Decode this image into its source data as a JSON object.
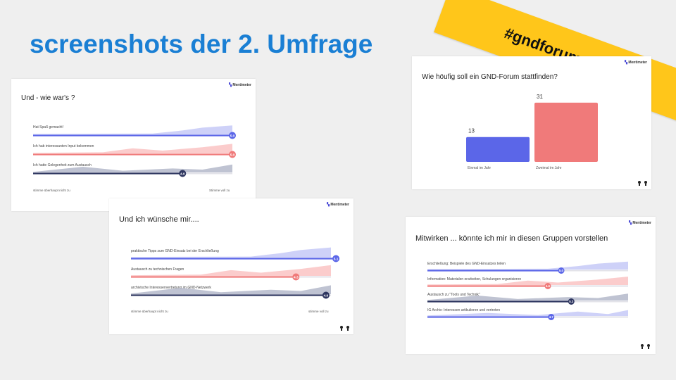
{
  "slide": {
    "title": "screenshots der 2. Umfrage",
    "hashtag": "#gndforumarchiv"
  },
  "cards": {
    "logo_text": "Mentimeter"
  },
  "colors": {
    "blue": "#5b66e8",
    "blue_fill": "#c9ccf7",
    "salmon": "#f07a7a",
    "salmon_fill": "#fbc7c7",
    "navy": "#2e3660",
    "navy_fill": "#b8bccd",
    "title_blue": "#1a7fd4",
    "banner": "#ffc61a"
  },
  "chart_data": [
    {
      "id": "wie_wars",
      "type": "scale",
      "title": "Und - wie war's ?",
      "min_label": "stimme überhaupt nicht zu",
      "max_label": "Stimme voll zu",
      "scale_range": [
        1,
        5
      ],
      "series": [
        {
          "label": "Hat Spaß gemacht!",
          "value": 5.0
        },
        {
          "label": "Ich hab interessanten Input bekommen",
          "value": 5.0
        },
        {
          "label": "Ich hatte Gelegenheit zum Austausch",
          "value": 4.0
        }
      ]
    },
    {
      "id": "wuensche",
      "type": "scale",
      "title": "Und ich wünsche mir....",
      "min_label": "stimme überhaupt nicht zu",
      "max_label": "stimme voll zu",
      "scale_range": [
        1,
        5
      ],
      "series": [
        {
          "label": "praktische Tipps zum GND-Einsatz bei der Erschließung",
          "value": 5.1
        },
        {
          "label": "Austausch zu technischen Fragen",
          "value": 4.3
        },
        {
          "label": "archivische Interessenvertretung im GND-Netzwerk",
          "value": 4.9
        }
      ]
    },
    {
      "id": "haeufigkeit",
      "type": "bar",
      "title": "Wie höufig soll ein GND-Forum stattfinden?",
      "categories": [
        "Einmal im Jahr",
        "Zweimal im Jahr"
      ],
      "values": [
        13,
        31
      ],
      "ylim": [
        0,
        35
      ]
    },
    {
      "id": "mitwirken",
      "type": "scale",
      "title": "Mitwirken ... könnte ich mir in diesen Gruppen vorstellen",
      "scale_range": [
        1,
        7
      ],
      "series": [
        {
          "label": "Erschließung: Beispiele des GND-Einsatzes teilen",
          "value": 5.0
        },
        {
          "label": "Information: Materialen erarbeiten, Schulungen organisieren",
          "value": 4.6
        },
        {
          "label": "Austausch zu \"Tools und Technik\"",
          "value": 5.3
        },
        {
          "label": "IG Archiv: Interessen artikulieren und vertreten",
          "value": 4.7
        }
      ]
    }
  ]
}
